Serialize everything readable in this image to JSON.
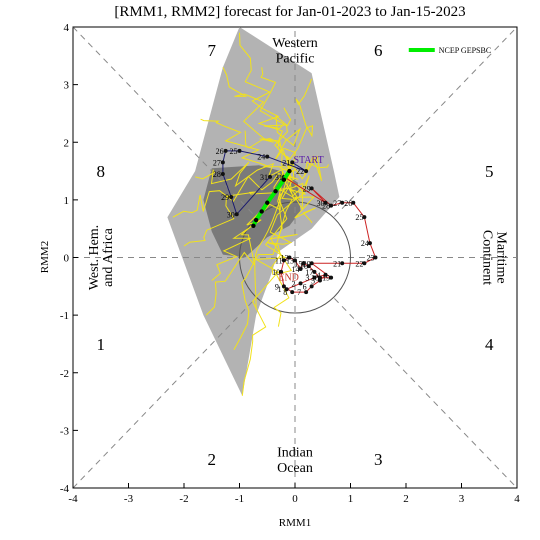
{
  "chart_data": {
    "type": "line",
    "title": "[RMM1, RMM2] forecast for Jan-01-2023 to Jan-15-2023",
    "xlabel": "RMM1",
    "ylabel": "RMM2",
    "xlim": [
      -4,
      4
    ],
    "ylim": [
      -4,
      4
    ],
    "xticks": [
      "-4",
      "-3",
      "-2",
      "-1",
      "0",
      "1",
      "2",
      "3",
      "4"
    ],
    "yticks": [
      "-4",
      "-3",
      "-2",
      "-1",
      "0",
      "1",
      "2",
      "3",
      "4"
    ],
    "unit_circle_radius": 1,
    "phase_labels": [
      {
        "label": "1",
        "x": -3.5,
        "y": -1.5
      },
      {
        "label": "2",
        "x": -1.5,
        "y": -3.5
      },
      {
        "label": "3",
        "x": 1.5,
        "y": -3.5
      },
      {
        "label": "4",
        "x": 3.5,
        "y": -1.5
      },
      {
        "label": "5",
        "x": 3.5,
        "y": 1.5
      },
      {
        "label": "6",
        "x": 1.5,
        "y": 3.6
      },
      {
        "label": "7",
        "x": -1.5,
        "y": 3.6
      },
      {
        "label": "8",
        "x": -3.5,
        "y": 1.5
      }
    ],
    "regions": {
      "top": [
        "Western",
        "Pacific"
      ],
      "bottom": [
        "Indian",
        "Ocean"
      ],
      "left": [
        "West. Hem.",
        "and Africa"
      ],
      "right": [
        "Maritime",
        "Continent"
      ]
    },
    "legend": {
      "label": "NCEP GEPSBC",
      "color": "#00ee00",
      "position": "top-right"
    },
    "start_label": "START",
    "end_label": "END",
    "observed": {
      "color": "#cc2222",
      "points": [
        {
          "day": "1",
          "x": -0.15,
          "y": -0.55
        },
        {
          "day": "2",
          "x": 0.1,
          "y": -0.45
        },
        {
          "day": "3",
          "x": 0.35,
          "y": -0.35
        },
        {
          "day": "4",
          "x": 0.55,
          "y": -0.3
        },
        {
          "day": "5",
          "x": 0.45,
          "y": -0.4
        },
        {
          "day": "6",
          "x": 0.3,
          "y": -0.5
        },
        {
          "day": "7",
          "x": 0.2,
          "y": -0.6
        },
        {
          "day": "8",
          "x": -0.05,
          "y": -0.6
        },
        {
          "day": "9",
          "x": -0.2,
          "y": -0.5
        },
        {
          "day": "10",
          "x": -0.25,
          "y": -0.25
        },
        {
          "day": "11",
          "x": -0.2,
          "y": -0.05
        },
        {
          "day": "12",
          "x": -0.1,
          "y": 0.0
        },
        {
          "day": "13",
          "x": 0.0,
          "y": -0.05
        },
        {
          "day": "14",
          "x": 0.1,
          "y": -0.2
        },
        {
          "day": "15",
          "x": 0.15,
          "y": -0.1
        },
        {
          "day": "16",
          "x": 0.25,
          "y": -0.15
        },
        {
          "day": "17",
          "x": 0.35,
          "y": -0.25
        },
        {
          "day": "18",
          "x": 0.45,
          "y": -0.35
        },
        {
          "day": "19",
          "x": 0.65,
          "y": -0.35
        },
        {
          "day": "20",
          "x": 0.3,
          "y": -0.1
        },
        {
          "day": "21",
          "x": 0.85,
          "y": -0.1
        },
        {
          "day": "22",
          "x": 1.25,
          "y": -0.1
        },
        {
          "day": "23",
          "x": 1.45,
          "y": 0.0
        },
        {
          "day": "24",
          "x": 1.35,
          "y": 0.25
        },
        {
          "day": "25",
          "x": 1.25,
          "y": 0.7
        },
        {
          "day": "26",
          "x": 1.05,
          "y": 0.95
        },
        {
          "day": "27",
          "x": 0.85,
          "y": 0.95
        },
        {
          "day": "28",
          "x": 0.65,
          "y": 0.9
        },
        {
          "day": "29",
          "x": 0.3,
          "y": 1.2
        },
        {
          "day": "30",
          "x": 0.55,
          "y": 0.95
        },
        {
          "day": "31",
          "x": -0.2,
          "y": 1.4
        }
      ],
      "extra_labels": [
        {
          "day": "20",
          "x": 0.25,
          "y": -0.15
        }
      ]
    },
    "forecast_start": {
      "x": -0.1,
      "y": 1.5
    },
    "lead_history": {
      "color": "#1a1a6e",
      "points": [
        {
          "day": "21",
          "x": -0.05,
          "y": 1.65
        },
        {
          "day": "22",
          "x": 0.2,
          "y": 1.5
        },
        {
          "day": "24",
          "x": -0.5,
          "y": 1.75
        },
        {
          "day": "25",
          "x": -1.0,
          "y": 1.85
        },
        {
          "day": "26",
          "x": -1.25,
          "y": 1.85
        },
        {
          "day": "27",
          "x": -1.3,
          "y": 1.65
        },
        {
          "day": "28",
          "x": -1.3,
          "y": 1.45
        },
        {
          "day": "29",
          "x": -1.15,
          "y": 1.05
        },
        {
          "day": "30",
          "x": -1.05,
          "y": 0.75
        },
        {
          "day": "31",
          "x": -0.45,
          "y": 1.4
        }
      ]
    },
    "ensemble_mean": {
      "color": "#00ee00",
      "points": [
        {
          "x": -0.1,
          "y": 1.5
        },
        {
          "x": -0.2,
          "y": 1.35
        },
        {
          "x": -0.35,
          "y": 1.15
        },
        {
          "x": -0.5,
          "y": 0.95
        },
        {
          "x": -0.6,
          "y": 0.8
        },
        {
          "x": -0.7,
          "y": 0.65
        },
        {
          "x": -0.75,
          "y": 0.55
        }
      ]
    },
    "spread_outer": [
      {
        "x": -1.0,
        "y": 4.0
      },
      {
        "x": 0.3,
        "y": 3.2
      },
      {
        "x": 0.7,
        "y": 1.5
      },
      {
        "x": 0.8,
        "y": 1.05
      },
      {
        "x": 0.3,
        "y": 0.5
      },
      {
        "x": -0.3,
        "y": 0.1
      },
      {
        "x": -0.45,
        "y": -0.35
      },
      {
        "x": -0.7,
        "y": -1.0
      },
      {
        "x": -0.95,
        "y": -2.4
      },
      {
        "x": -1.65,
        "y": -1.0
      },
      {
        "x": -2.3,
        "y": 0.7
      },
      {
        "x": -1.8,
        "y": 1.5
      },
      {
        "x": -1.3,
        "y": 3.3
      }
    ],
    "spread_inner": [
      {
        "x": -1.5,
        "y": 1.55
      },
      {
        "x": -0.65,
        "y": 1.6
      },
      {
        "x": -0.25,
        "y": 1.5
      },
      {
        "x": 0.05,
        "y": 1.3
      },
      {
        "x": 0.1,
        "y": 0.8
      },
      {
        "x": -0.1,
        "y": 0.55
      },
      {
        "x": -0.5,
        "y": 0.35
      },
      {
        "x": -0.9,
        "y": 0.0
      },
      {
        "x": -1.3,
        "y": 0.05
      },
      {
        "x": -1.5,
        "y": 0.45
      },
      {
        "x": -1.65,
        "y": 1.0
      }
    ],
    "colors": {
      "spread_outer": "#b3b3b3",
      "spread_inner": "#7a7a7a",
      "members": "#f2e21a",
      "observed": "#cc2222",
      "lead": "#1a1a6e",
      "mean": "#00ee00"
    }
  }
}
